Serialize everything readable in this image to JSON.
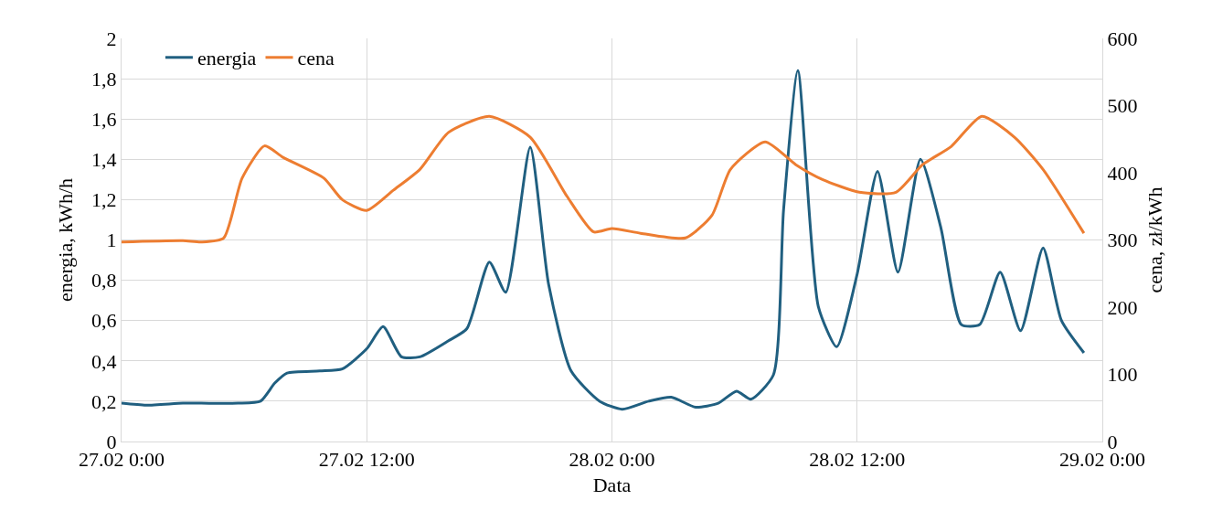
{
  "chart_data": {
    "type": "line",
    "xlabel": "Data",
    "ylabel": "energia, kWh/h",
    "y2label": "cena, zł/kWh",
    "xlim": [
      "--02-27T00:00",
      "--02-29T00:00"
    ],
    "xticks": [
      {
        "value": "--02-27T00:00",
        "label": "27.02 0:00"
      },
      {
        "value": "--02-27T12:00",
        "label": "27.02 12:00"
      },
      {
        "value": "--02-28T00:00",
        "label": "28.02 0:00"
      },
      {
        "value": "--02-28T12:00",
        "label": "28.02 12:00"
      },
      {
        "value": "--02-29T00:00",
        "label": "29.02 0:00"
      }
    ],
    "ylim": [
      0,
      2
    ],
    "yticks": [
      0,
      {
        "value": 0.2,
        "label": "0,2"
      },
      {
        "value": 0.4,
        "label": "0,4"
      },
      {
        "value": 0.6,
        "label": "0,6"
      },
      {
        "value": 0.8,
        "label": "0,8"
      },
      1,
      {
        "value": 1.2,
        "label": "1,2"
      },
      {
        "value": 1.4,
        "label": "1,4"
      },
      {
        "value": 1.6,
        "label": "1,6"
      },
      {
        "value": 1.8,
        "label": "1,8"
      },
      2
    ],
    "y2lim": [
      0,
      600
    ],
    "y2ticks": [
      0,
      100,
      200,
      300,
      400,
      500,
      600
    ],
    "grid": true,
    "legend": "top left",
    "line_style": "solid",
    "series": [
      {
        "name": "energia",
        "color": "#205f80",
        "x": [
          "--02-27T00:00",
          "--02-27T01:12",
          "--02-27T03:00",
          "--02-27T03:54",
          "--02-27T05:42",
          "--02-27T06:48",
          "--02-27T07:30",
          "--02-27T08:06",
          "--02-27T09:42",
          "--02-27T10:48",
          "--02-27T12:00",
          "--02-27T12:48",
          "--02-27T13:42",
          "--02-27T14:36",
          "--02-27T16:00",
          "--02-27T16:54",
          "--02-27T18:00",
          "--02-27T18:48",
          "--02-27T20:00",
          "--02-27T20:54",
          "--02-27T22:00",
          "--02-27T23:24",
          "--02-28T00:30",
          "--02-28T01:48",
          "--02-28T02:54",
          "--02-28T04:06",
          "--02-28T05:12",
          "--02-28T06:06",
          "--02-28T06:48",
          "--02-28T07:54",
          "--02-28T08:24",
          "--02-28T09:06",
          "--02-28T10:06",
          "--02-28T11:00",
          "--02-28T12:00",
          "--02-28T13:00",
          "--02-28T14:00",
          "--02-28T15:06",
          "--02-28T16:06",
          "--02-28T17:06",
          "--02-28T18:00",
          "--02-28T19:00",
          "--02-28T20:00",
          "--02-28T21:06",
          "--02-28T22:00",
          "--02-28T23:06"
        ],
        "values": [
          0.19,
          0.18,
          0.19,
          0.19,
          0.19,
          0.2,
          0.29,
          0.34,
          0.35,
          0.36,
          0.46,
          0.57,
          0.42,
          0.42,
          0.5,
          0.56,
          0.89,
          0.74,
          1.46,
          0.78,
          0.35,
          0.2,
          0.16,
          0.2,
          0.22,
          0.17,
          0.19,
          0.25,
          0.21,
          0.33,
          1.15,
          1.84,
          0.67,
          0.47,
          0.83,
          1.34,
          0.84,
          1.4,
          1.06,
          0.58,
          0.58,
          0.84,
          0.55,
          0.96,
          0.6,
          0.44
        ]
      },
      {
        "name": "cena",
        "color": "#ed7d31",
        "axis": "y2",
        "x": [
          "--02-27T00:00",
          "--02-27T03:00",
          "--02-27T03:54",
          "--02-27T05:00",
          "--02-27T05:54",
          "--02-27T07:00",
          "--02-27T07:54",
          "--02-27T09:54",
          "--02-27T10:48",
          "--02-27T12:00",
          "--02-27T13:18",
          "--02-27T14:36",
          "--02-27T16:00",
          "--02-27T18:00",
          "--02-27T20:00",
          "--02-27T21:48",
          "--02-27T23:06",
          "--02-28T00:00",
          "--02-28T01:24",
          "--02-28T03:36",
          "--02-28T04:54",
          "--02-28T05:48",
          "--02-28T07:30",
          "--02-28T09:00",
          "--02-28T10:18",
          "--02-28T12:06",
          "--02-28T13:54",
          "--02-28T15:12",
          "--02-28T16:36",
          "--02-28T18:06",
          "--02-28T19:42",
          "--02-28T21:06",
          "--02-28T23:06"
        ],
        "values": [
          297,
          299,
          297,
          303,
          392,
          440,
          423,
          392,
          360,
          344,
          374,
          405,
          460,
          484,
          453,
          365,
          312,
          317,
          310,
          303,
          337,
          405,
          446,
          412,
          390,
          371,
          371,
          412,
          439,
          484,
          453,
          405,
          310
        ]
      }
    ]
  }
}
